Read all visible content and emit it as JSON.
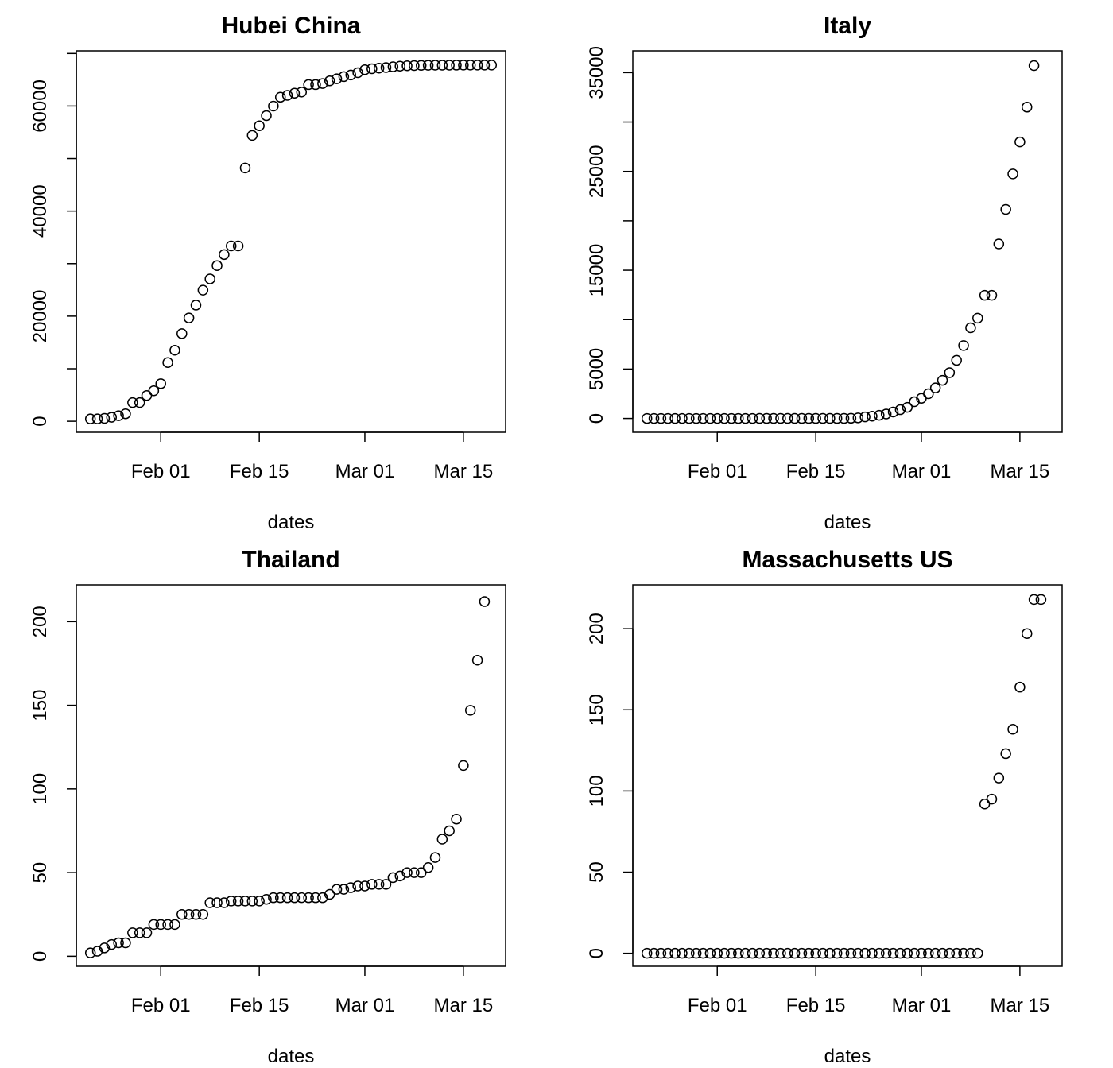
{
  "chart_data": [
    {
      "type": "scatter",
      "title": "Hubei China",
      "xlabel": "dates",
      "ylabel": "",
      "x_start": "2020-01-22",
      "x_ticks": [
        "Feb 01",
        "Feb 15",
        "Mar 01",
        "Mar 15"
      ],
      "x_tick_dates": [
        "2020-02-01",
        "2020-02-15",
        "2020-03-01",
        "2020-03-15"
      ],
      "xlim": [
        "2020-01-20",
        "2020-03-21"
      ],
      "y_ticks": [
        0,
        10000,
        20000,
        30000,
        40000,
        50000,
        60000,
        70000
      ],
      "y_tick_labels": [
        "0",
        "",
        "20000",
        "",
        "40000",
        "",
        "60000",
        ""
      ],
      "ylim": [
        -2100,
        70500
      ],
      "values": [
        444,
        444,
        549,
        761,
        1058,
        1423,
        3554,
        3554,
        4903,
        5806,
        7153,
        11177,
        13522,
        16678,
        19665,
        22112,
        24953,
        27100,
        29631,
        31728,
        33366,
        33366,
        48206,
        54406,
        56249,
        58182,
        59989,
        61682,
        62031,
        62442,
        62662,
        64084,
        64084,
        64287,
        64786,
        65187,
        65596,
        65914,
        66337,
        66907,
        67103,
        67217,
        67332,
        67466,
        67592,
        67666,
        67707,
        67743,
        67760,
        67773,
        67781,
        67786,
        67790,
        67794,
        67798,
        67799,
        67800,
        67800
      ]
    },
    {
      "type": "scatter",
      "title": "Italy",
      "xlabel": "dates",
      "ylabel": "",
      "x_start": "2020-01-22",
      "x_ticks": [
        "Feb 01",
        "Feb 15",
        "Mar 01",
        "Mar 15"
      ],
      "x_tick_dates": [
        "2020-02-01",
        "2020-02-15",
        "2020-03-01",
        "2020-03-15"
      ],
      "xlim": [
        "2020-01-20",
        "2020-03-21"
      ],
      "y_ticks": [
        0,
        5000,
        10000,
        15000,
        20000,
        25000,
        30000,
        35000
      ],
      "y_tick_labels": [
        "0",
        "5000",
        "",
        "15000",
        "",
        "25000",
        "",
        "35000"
      ],
      "ylim": [
        -1400,
        37200
      ],
      "values": [
        0,
        0,
        0,
        0,
        0,
        0,
        0,
        0,
        0,
        2,
        2,
        2,
        2,
        2,
        2,
        2,
        3,
        3,
        3,
        3,
        3,
        3,
        3,
        3,
        3,
        3,
        3,
        3,
        3,
        20,
        62,
        155,
        229,
        322,
        453,
        655,
        888,
        1128,
        1694,
        2036,
        2502,
        3089,
        3858,
        4636,
        5883,
        7375,
        9172,
        10149,
        12462,
        12462,
        17660,
        21157,
        24747,
        27980,
        31506,
        35713
      ]
    },
    {
      "type": "scatter",
      "title": "Thailand",
      "xlabel": "dates",
      "ylabel": "",
      "x_start": "2020-01-22",
      "x_ticks": [
        "Feb 01",
        "Feb 15",
        "Mar 01",
        "Mar 15"
      ],
      "x_tick_dates": [
        "2020-02-01",
        "2020-02-15",
        "2020-03-01",
        "2020-03-15"
      ],
      "xlim": [
        "2020-01-20",
        "2020-03-21"
      ],
      "y_ticks": [
        0,
        50,
        100,
        150,
        200
      ],
      "y_tick_labels": [
        "0",
        "50",
        "100",
        "150",
        "200"
      ],
      "ylim": [
        -6,
        222
      ],
      "values": [
        2,
        3,
        5,
        7,
        8,
        8,
        14,
        14,
        14,
        19,
        19,
        19,
        19,
        25,
        25,
        25,
        25,
        32,
        32,
        32,
        33,
        33,
        33,
        33,
        33,
        34,
        35,
        35,
        35,
        35,
        35,
        35,
        35,
        35,
        37,
        40,
        40,
        41,
        42,
        42,
        43,
        43,
        43,
        47,
        48,
        50,
        50,
        50,
        53,
        59,
        70,
        75,
        82,
        114,
        147,
        177,
        212
      ]
    },
    {
      "type": "scatter",
      "title": "Massachusetts US",
      "xlabel": "dates",
      "ylabel": "",
      "x_start": "2020-01-22",
      "x_ticks": [
        "Feb 01",
        "Feb 15",
        "Mar 01",
        "Mar 15"
      ],
      "x_tick_dates": [
        "2020-02-01",
        "2020-02-15",
        "2020-03-01",
        "2020-03-15"
      ],
      "xlim": [
        "2020-01-20",
        "2020-03-21"
      ],
      "y_ticks": [
        0,
        50,
        100,
        150,
        200
      ],
      "y_tick_labels": [
        "0",
        "50",
        "100",
        "150",
        "200"
      ],
      "ylim": [
        -8,
        227
      ],
      "values": [
        0,
        0,
        0,
        0,
        0,
        0,
        0,
        0,
        0,
        0,
        0,
        0,
        0,
        0,
        0,
        0,
        0,
        0,
        0,
        0,
        0,
        0,
        0,
        0,
        0,
        0,
        0,
        0,
        0,
        0,
        0,
        0,
        0,
        0,
        0,
        0,
        0,
        0,
        0,
        0,
        0,
        0,
        0,
        0,
        0,
        0,
        0,
        0,
        92,
        95,
        108,
        123,
        138,
        164,
        197,
        218,
        218
      ]
    }
  ]
}
